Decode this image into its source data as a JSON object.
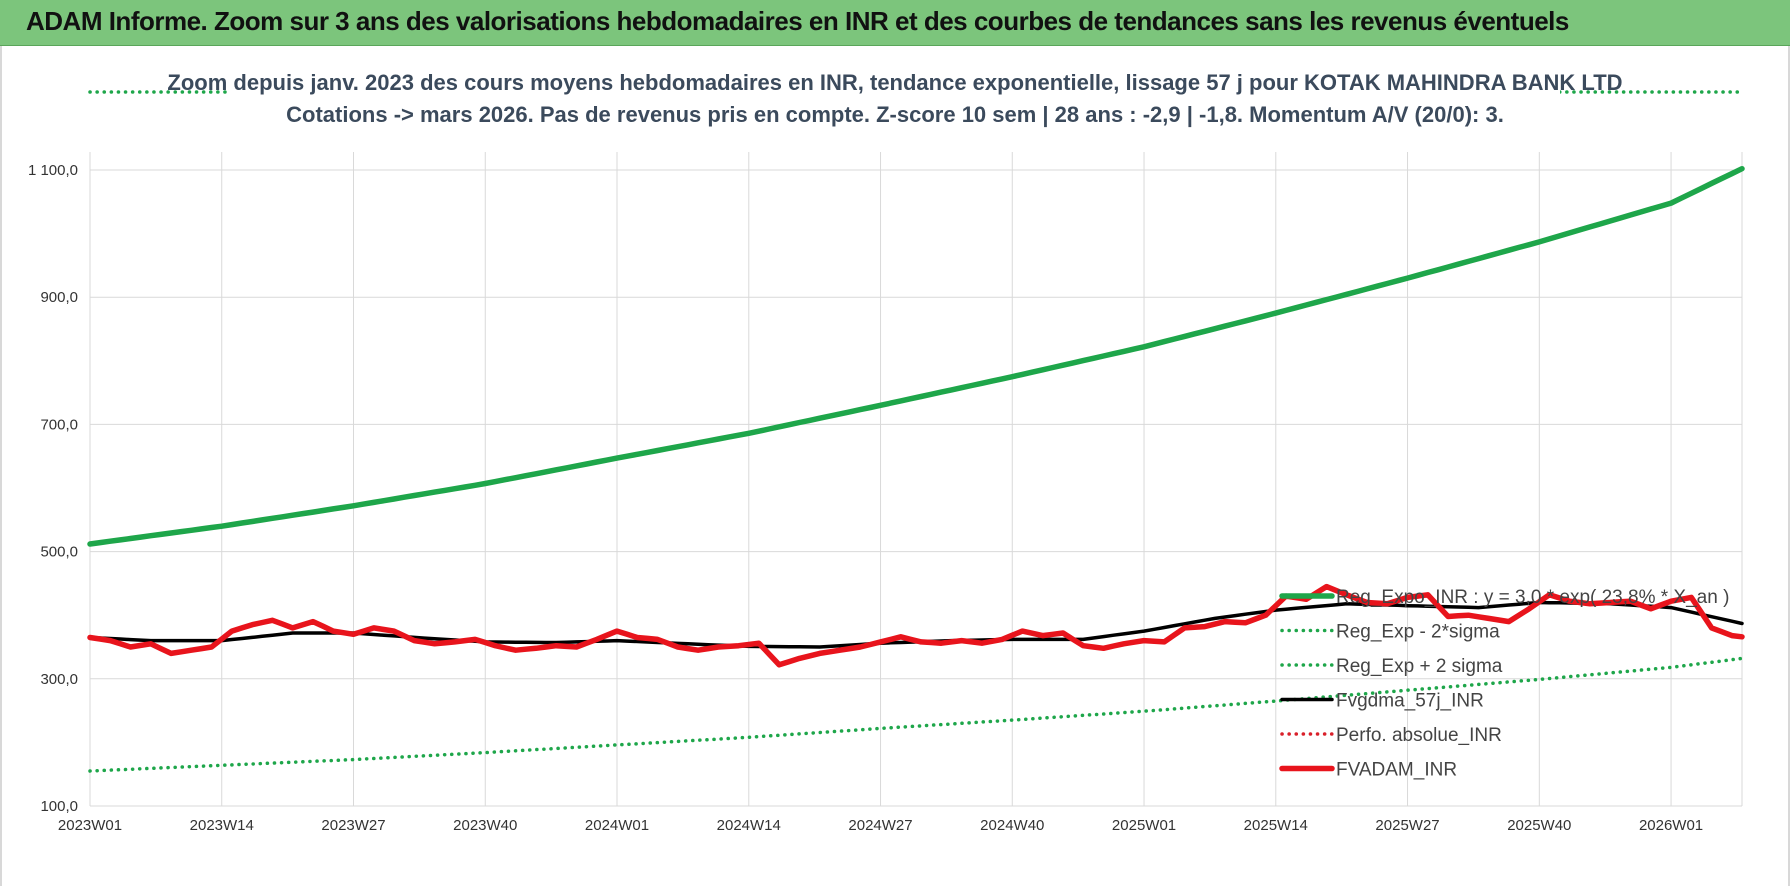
{
  "banner": {
    "title": "ADAM Informe. Zoom sur 3 ans des valorisations hebdomadaires en INR et des courbes de tendances sans les revenus éventuels",
    "color": "#7cc57c"
  },
  "chart_data": {
    "type": "line",
    "title_line1": "Zoom depuis janv. 2023 des cours moyens hebdomadaires en INR, tendance exponentielle, lissage 57 j pour KOTAK MAHINDRA BANK LTD",
    "title_line2": "Cotations -> mars 2026. Pas de revenus pris en compte. Z-score 10 sem | 28 ans : -2,9 | -1,8. Momentum A/V (20/0): 3.",
    "ylim": [
      100,
      1100
    ],
    "yticks": [
      "100,0",
      "300,0",
      "500,0",
      "700,0",
      "900,0",
      "1 100,0"
    ],
    "ytick_values": [
      100,
      300,
      500,
      700,
      900,
      1100
    ],
    "xticks": [
      "2023W01",
      "2023W14",
      "2023W27",
      "2023W40",
      "2024W01",
      "2024W14",
      "2024W27",
      "2024W40",
      "2025W01",
      "2025W14",
      "2025W27",
      "2025W40",
      "2026W01"
    ],
    "x_count": 164,
    "grid": true,
    "legend_placement": "right",
    "series": [
      {
        "name": "Reg_Expo_INR : y = 3,0 * exp( 23,8% * X_an )",
        "style": "solid-thick",
        "color": "#1ea64a",
        "anchors": [
          [
            0,
            512
          ],
          [
            13,
            540
          ],
          [
            26,
            572
          ],
          [
            39,
            607
          ],
          [
            52,
            647
          ],
          [
            65,
            686
          ],
          [
            78,
            730
          ],
          [
            91,
            775
          ],
          [
            104,
            822
          ],
          [
            117,
            875
          ],
          [
            130,
            930
          ],
          [
            143,
            987
          ],
          [
            156,
            1048
          ],
          [
            163,
            1102
          ]
        ]
      },
      {
        "name": "Reg_Exp - 2*sigma",
        "style": "dotted",
        "color": "#1ea64a",
        "anchors": [
          [
            0,
            155
          ],
          [
            13,
            164
          ],
          [
            26,
            173
          ],
          [
            39,
            184
          ],
          [
            52,
            196
          ],
          [
            65,
            208
          ],
          [
            78,
            222
          ],
          [
            91,
            235
          ],
          [
            104,
            249
          ],
          [
            117,
            265
          ],
          [
            130,
            282
          ],
          [
            143,
            299
          ],
          [
            156,
            318
          ],
          [
            163,
            332
          ]
        ]
      },
      {
        "name": "Reg_Exp + 2 sigma",
        "style": "dotted",
        "color": "#1ea64a",
        "anchors": [
          [
            0,
            1199
          ],
          [
            163,
            1199
          ]
        ]
      },
      {
        "name": "Fvgdma_57j_INR",
        "style": "solid",
        "color": "#000000",
        "anchors": [
          [
            0,
            365
          ],
          [
            6,
            360
          ],
          [
            13,
            360
          ],
          [
            20,
            372
          ],
          [
            26,
            372
          ],
          [
            33,
            364
          ],
          [
            39,
            358
          ],
          [
            46,
            357
          ],
          [
            52,
            360
          ],
          [
            59,
            355
          ],
          [
            65,
            351
          ],
          [
            72,
            350
          ],
          [
            78,
            356
          ],
          [
            85,
            360
          ],
          [
            91,
            362
          ],
          [
            98,
            362
          ],
          [
            104,
            375
          ],
          [
            111,
            395
          ],
          [
            117,
            408
          ],
          [
            124,
            418
          ],
          [
            130,
            415
          ],
          [
            137,
            412
          ],
          [
            143,
            420
          ],
          [
            150,
            418
          ],
          [
            156,
            412
          ],
          [
            163,
            387
          ]
        ]
      },
      {
        "name": "Perfo. absolue_INR",
        "style": "dotted",
        "color": "#d9202a",
        "anchors": []
      },
      {
        "name": "FVADAM_INR",
        "style": "solid-thick",
        "color": "#e8141c",
        "anchors": [
          [
            0,
            365
          ],
          [
            2,
            360
          ],
          [
            4,
            350
          ],
          [
            6,
            355
          ],
          [
            8,
            340
          ],
          [
            10,
            345
          ],
          [
            12,
            350
          ],
          [
            14,
            375
          ],
          [
            16,
            385
          ],
          [
            18,
            392
          ],
          [
            20,
            380
          ],
          [
            22,
            390
          ],
          [
            24,
            375
          ],
          [
            26,
            370
          ],
          [
            28,
            380
          ],
          [
            30,
            375
          ],
          [
            32,
            360
          ],
          [
            34,
            355
          ],
          [
            36,
            358
          ],
          [
            38,
            362
          ],
          [
            40,
            352
          ],
          [
            42,
            345
          ],
          [
            44,
            348
          ],
          [
            46,
            352
          ],
          [
            48,
            350
          ],
          [
            50,
            362
          ],
          [
            52,
            375
          ],
          [
            54,
            365
          ],
          [
            56,
            362
          ],
          [
            58,
            350
          ],
          [
            60,
            345
          ],
          [
            62,
            350
          ],
          [
            64,
            352
          ],
          [
            66,
            356
          ],
          [
            68,
            322
          ],
          [
            70,
            332
          ],
          [
            72,
            340
          ],
          [
            74,
            345
          ],
          [
            76,
            350
          ],
          [
            78,
            358
          ],
          [
            80,
            366
          ],
          [
            82,
            358
          ],
          [
            84,
            356
          ],
          [
            86,
            360
          ],
          [
            88,
            356
          ],
          [
            90,
            362
          ],
          [
            92,
            375
          ],
          [
            94,
            368
          ],
          [
            96,
            372
          ],
          [
            98,
            352
          ],
          [
            100,
            348
          ],
          [
            102,
            355
          ],
          [
            104,
            360
          ],
          [
            106,
            358
          ],
          [
            108,
            380
          ],
          [
            110,
            382
          ],
          [
            112,
            390
          ],
          [
            114,
            388
          ],
          [
            116,
            400
          ],
          [
            118,
            430
          ],
          [
            120,
            425
          ],
          [
            122,
            445
          ],
          [
            124,
            432
          ],
          [
            126,
            420
          ],
          [
            128,
            418
          ],
          [
            130,
            428
          ],
          [
            132,
            432
          ],
          [
            134,
            398
          ],
          [
            136,
            400
          ],
          [
            138,
            395
          ],
          [
            140,
            390
          ],
          [
            142,
            410
          ],
          [
            144,
            432
          ],
          [
            146,
            422
          ],
          [
            148,
            418
          ],
          [
            150,
            420
          ],
          [
            152,
            422
          ],
          [
            154,
            410
          ],
          [
            156,
            422
          ],
          [
            158,
            428
          ],
          [
            160,
            380
          ],
          [
            162,
            368
          ],
          [
            163,
            366
          ]
        ]
      }
    ]
  }
}
